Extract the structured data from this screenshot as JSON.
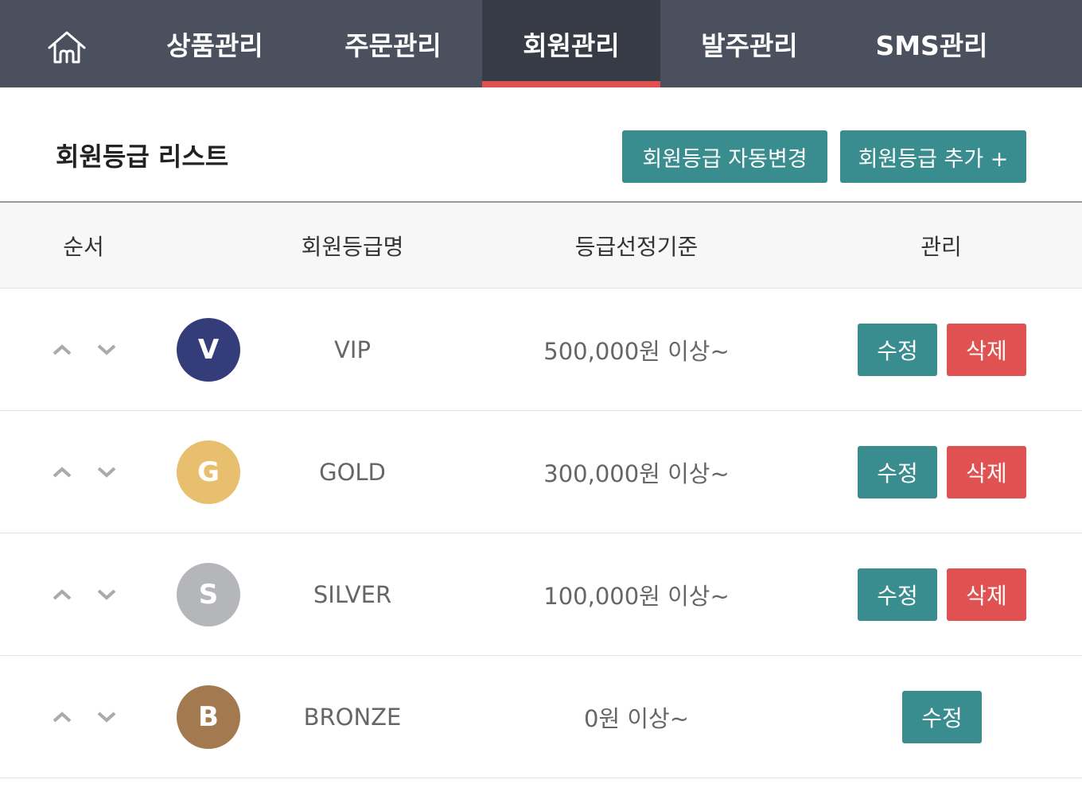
{
  "nav": {
    "home_icon": "home-icon",
    "tabs": [
      {
        "label": "상품관리"
      },
      {
        "label": "주문관리"
      },
      {
        "label": "회원관리",
        "active": true
      },
      {
        "label": "발주관리"
      },
      {
        "label": "SMS관리"
      }
    ]
  },
  "page": {
    "title": "회원등급 리스트",
    "auto_change_label": "회원등급 자동변경",
    "add_label": "회원등급 추가 +"
  },
  "table": {
    "headers": [
      "순서",
      "회원등급명",
      "등급선정기준",
      "관리"
    ],
    "rows": [
      {
        "initial": "V",
        "color": "#353c7a",
        "name": "VIP",
        "criteria": "500,000원 이상~",
        "edit": "수정",
        "delete": "삭제"
      },
      {
        "initial": "G",
        "color": "#e8bf6e",
        "name": "GOLD",
        "criteria": "300,000원 이상~",
        "edit": "수정",
        "delete": "삭제"
      },
      {
        "initial": "S",
        "color": "#b5b6ba",
        "name": "SILVER",
        "criteria": "100,000원 이상~",
        "edit": "수정",
        "delete": "삭제"
      },
      {
        "initial": "B",
        "color": "#a37a50",
        "name": "BRONZE",
        "criteria": "0원 이상~",
        "edit": "수정"
      }
    ]
  },
  "colors": {
    "nav": "#4a505e",
    "nav_active": "#373b45",
    "accent_red": "#e05252",
    "teal": "#3a8d8f"
  }
}
